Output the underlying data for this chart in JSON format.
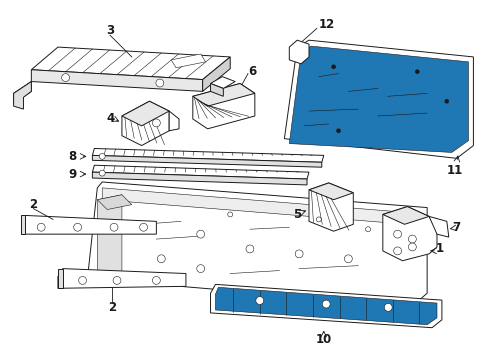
{
  "background_color": "#ffffff",
  "figure_width": 4.89,
  "figure_height": 3.6,
  "dpi": 100,
  "line_color": "#1a1a1a",
  "lw": 0.7,
  "tlw": 0.4,
  "fs": 8.5
}
